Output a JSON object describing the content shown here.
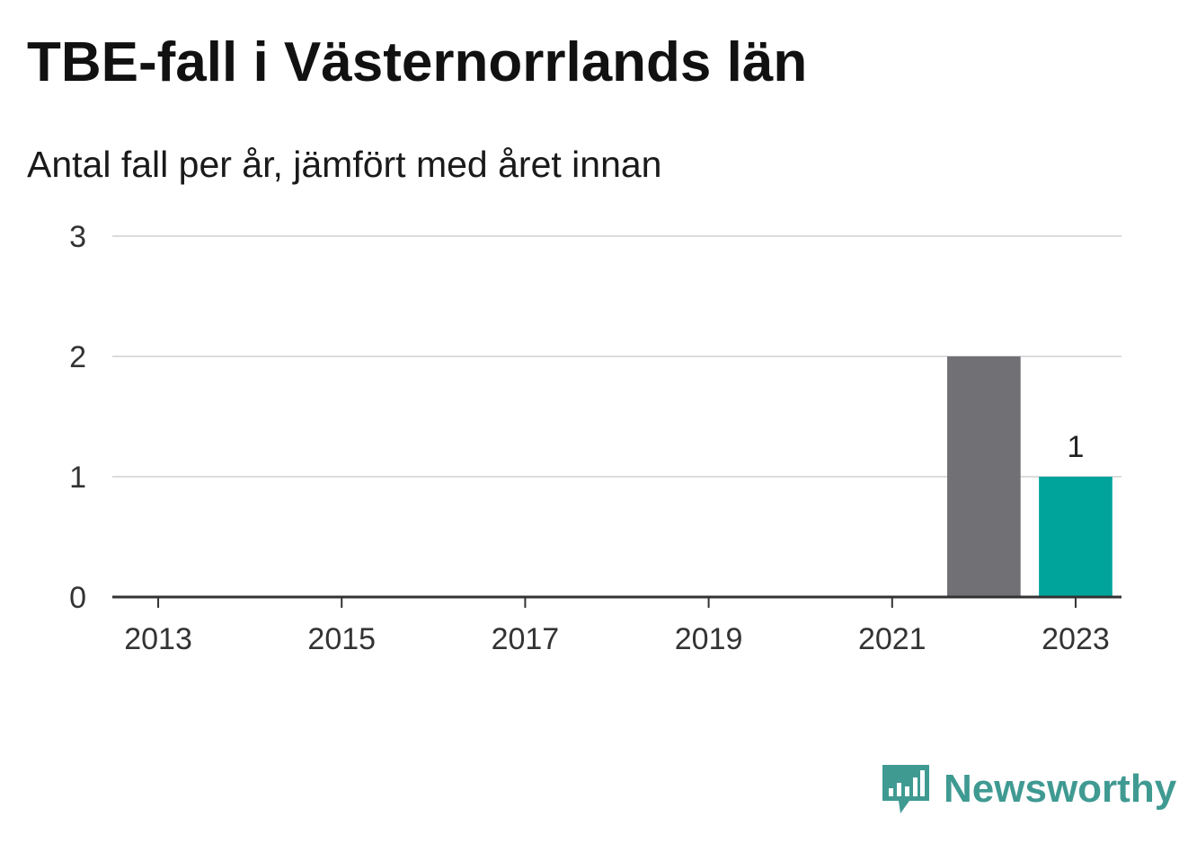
{
  "chart_data": {
    "type": "bar",
    "title": "TBE-fall i Västernorrlands län",
    "subtitle": "Antal fall per år, jämfört med året innan",
    "x_ticks": [
      "2013",
      "2015",
      "2017",
      "2019",
      "2021",
      "2023"
    ],
    "y_ticks": [
      "0",
      "1",
      "2",
      "3"
    ],
    "ylim": [
      0,
      3
    ],
    "xlim": [
      2012.5,
      2023.5
    ],
    "grid": true,
    "bars": [
      {
        "year": 2022,
        "value": 2,
        "color": "#707075",
        "label": ""
      },
      {
        "year": 2023,
        "value": 1,
        "color": "#00a49a",
        "label": "1"
      }
    ]
  },
  "brand": {
    "name": "Newsworthy",
    "logo_icon": "newsworthy-bars-icon",
    "color": "#3f9a92"
  }
}
